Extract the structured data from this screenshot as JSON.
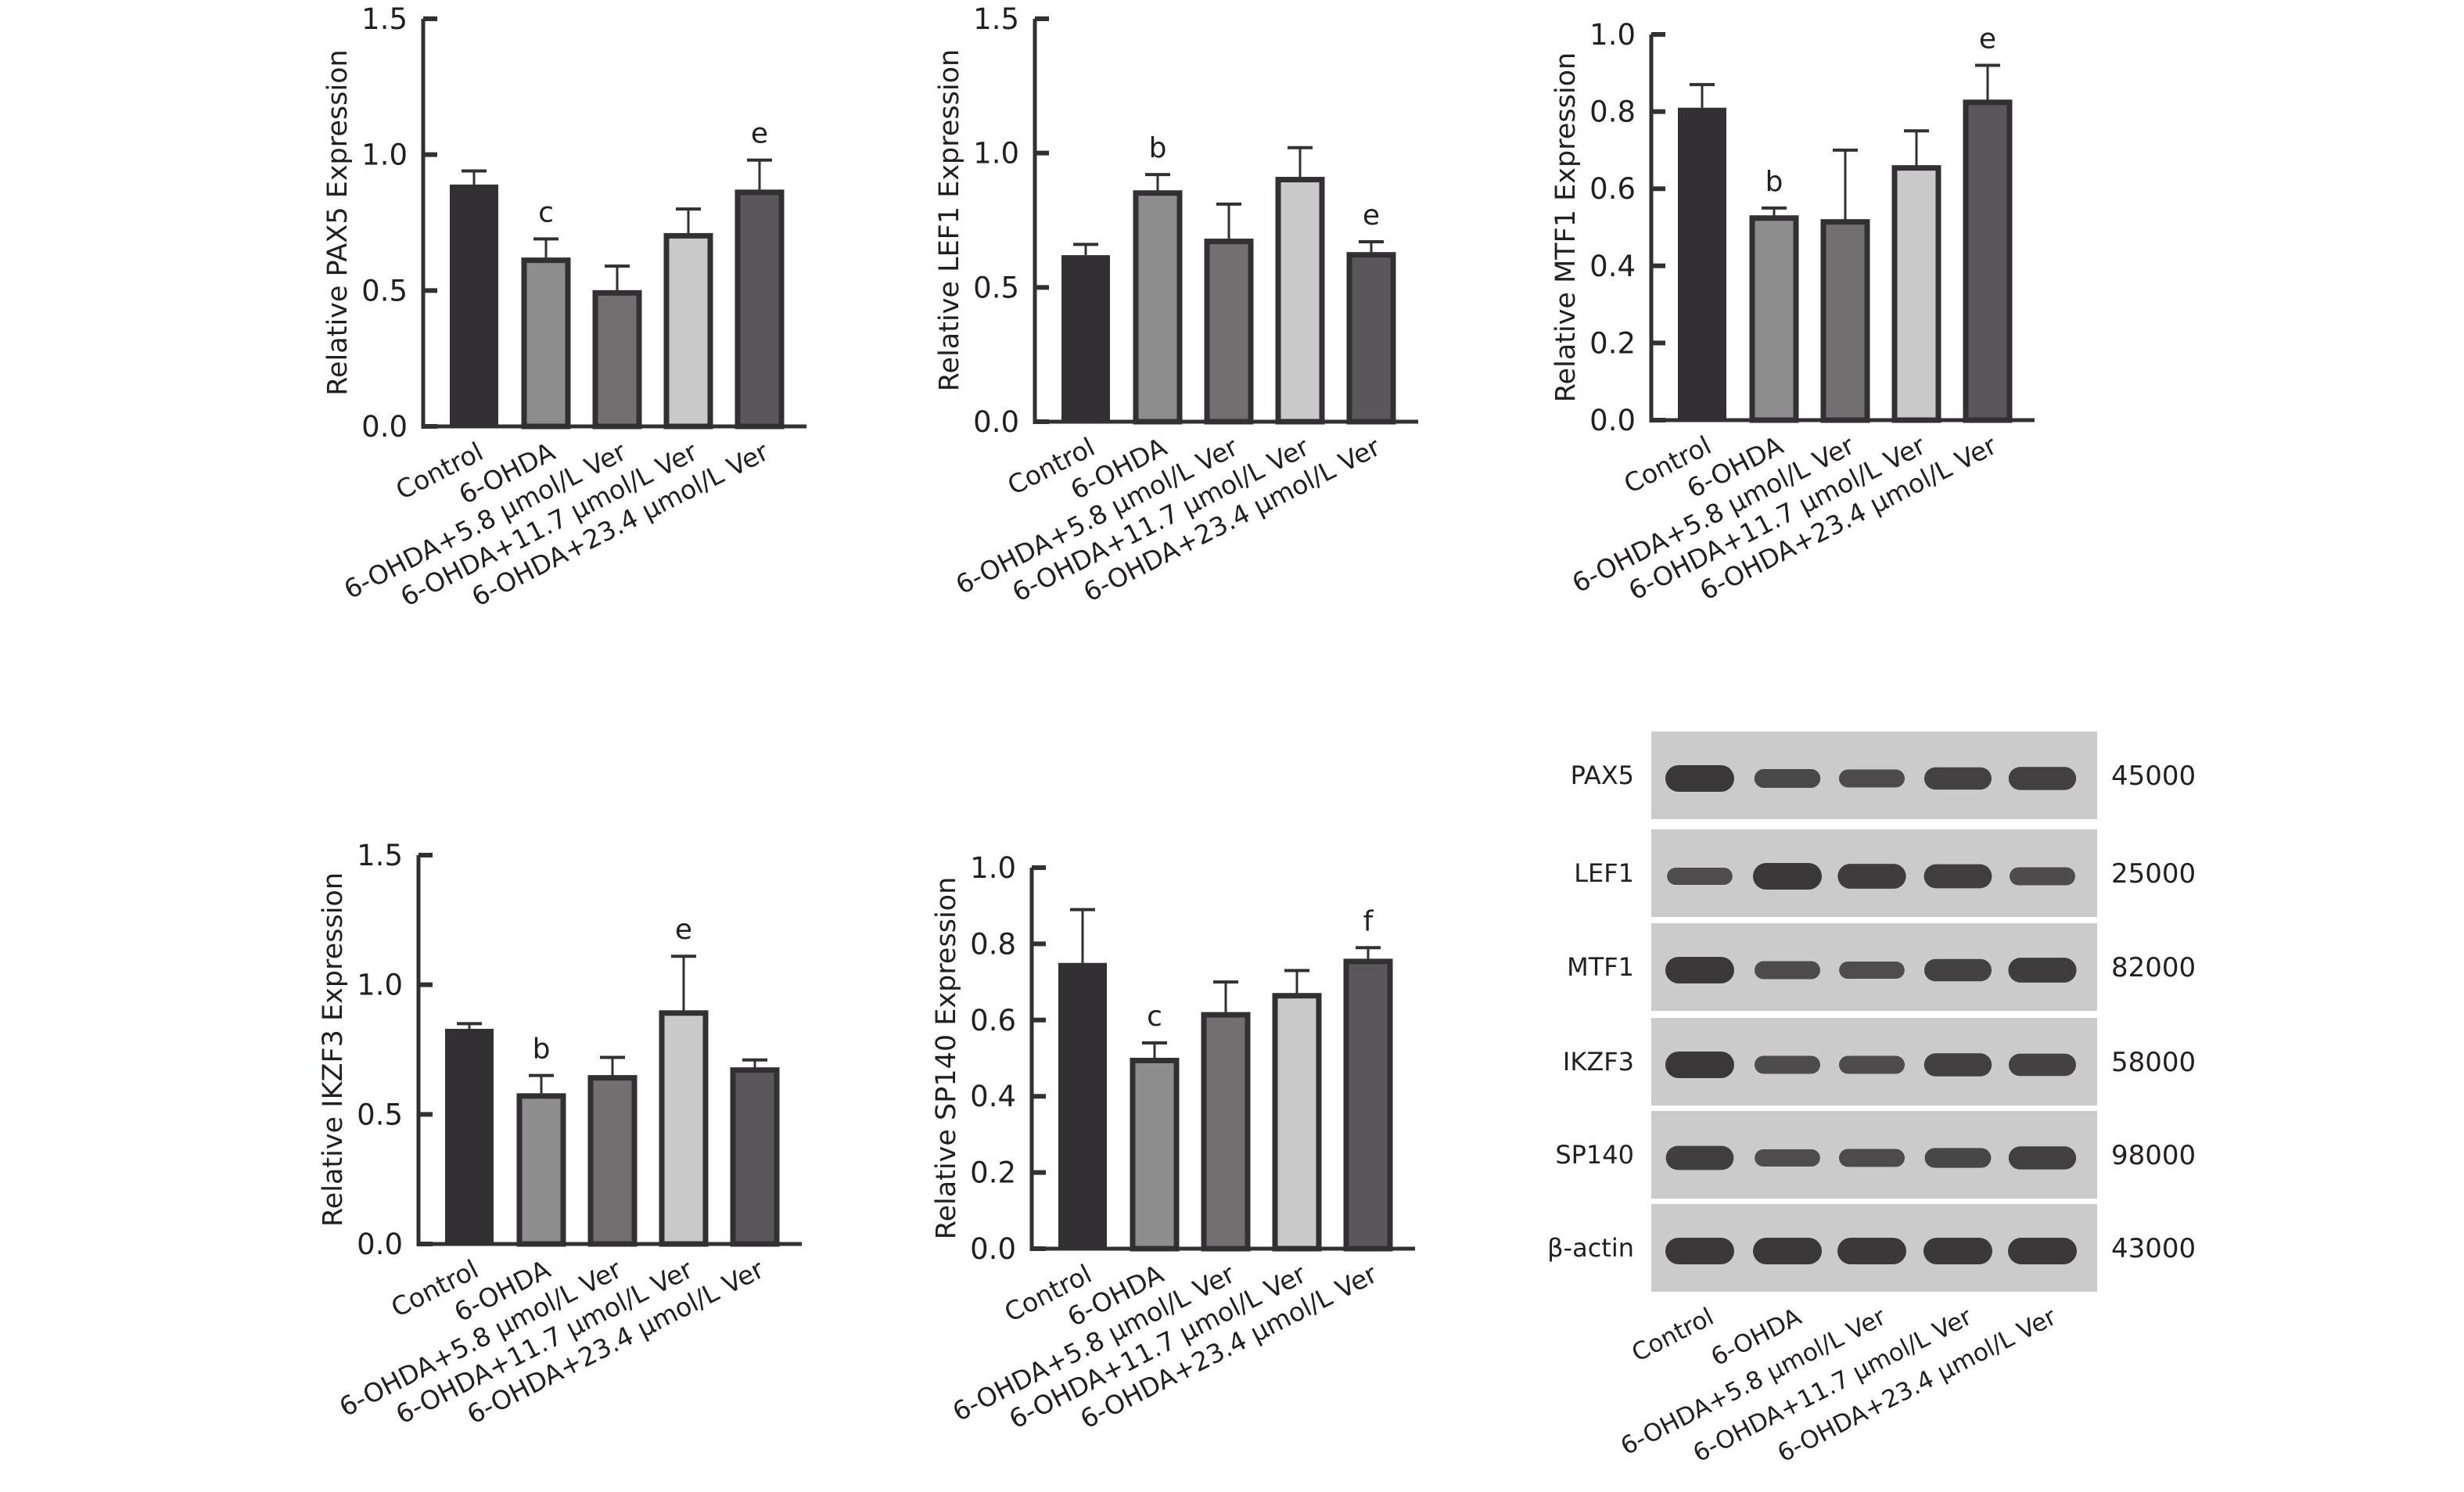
{
  "groups": [
    "Control",
    "6-OHDA",
    "6-OHDA+5.8 μmol/L Ver",
    "6-OHDA+11.7 μmol/L Ver",
    "6-OHDA+23.4 μmol/L Ver"
  ],
  "colors": {
    "bars": [
      "#333033",
      "#8e8d8e",
      "#716f70",
      "#c9c9c9",
      "#595759"
    ],
    "outline": "#333033",
    "blot_bg": "#cbcbcb",
    "band": "#3a3839"
  },
  "chart_data": [
    {
      "type": "bar",
      "id": "pax5",
      "ylabel": "Relative PAX5 Expression",
      "ylim": [
        0,
        1.5
      ],
      "ticks": [
        "0.0",
        "0.5",
        "1.0",
        "1.5"
      ],
      "values": [
        0.89,
        0.62,
        0.5,
        0.71,
        0.87
      ],
      "errors": [
        0.05,
        0.07,
        0.09,
        0.09,
        0.11
      ],
      "annotations": [
        "",
        "c",
        "",
        "",
        "e"
      ]
    },
    {
      "type": "bar",
      "id": "lef1",
      "ylabel": "Relative LEF1 Expression",
      "ylim": [
        0,
        1.5
      ],
      "ticks": [
        "0.0",
        "0.5",
        "1.0",
        "1.5"
      ],
      "values": [
        0.62,
        0.86,
        0.68,
        0.91,
        0.63
      ],
      "errors": [
        0.04,
        0.06,
        0.13,
        0.11,
        0.04
      ],
      "annotations": [
        "",
        "b",
        "",
        "",
        "e"
      ]
    },
    {
      "type": "bar",
      "id": "mtf1",
      "ylabel": "Relative MTF1 Expression",
      "ylim": [
        0,
        1.0
      ],
      "ticks": [
        "0.0",
        "0.2",
        "0.4",
        "0.6",
        "0.8",
        "1.0"
      ],
      "values": [
        0.81,
        0.53,
        0.52,
        0.66,
        0.83
      ],
      "errors": [
        0.06,
        0.02,
        0.18,
        0.09,
        0.09
      ],
      "annotations": [
        "",
        "b",
        "",
        "",
        "e"
      ]
    },
    {
      "type": "bar",
      "id": "ikzf3",
      "ylabel": "Relative IKZF3 Expression",
      "ylim": [
        0,
        1.5
      ],
      "ticks": [
        "0.0",
        "0.5",
        "1.0",
        "1.5"
      ],
      "values": [
        0.83,
        0.58,
        0.65,
        0.9,
        0.68
      ],
      "errors": [
        0.02,
        0.07,
        0.07,
        0.21,
        0.03
      ],
      "annotations": [
        "",
        "b",
        "",
        "e",
        ""
      ]
    },
    {
      "type": "bar",
      "id": "sp140",
      "ylabel": "Relative SP140 Expression",
      "ylim": [
        0,
        1.0
      ],
      "ticks": [
        "0.0",
        "0.2",
        "0.4",
        "0.6",
        "0.8",
        "1.0"
      ],
      "values": [
        0.75,
        0.5,
        0.62,
        0.67,
        0.76
      ],
      "errors": [
        0.14,
        0.04,
        0.08,
        0.06,
        0.03
      ],
      "annotations": [
        "",
        "c",
        "",
        "",
        "f"
      ]
    }
  ],
  "blot": {
    "rows": [
      {
        "label": "PAX5",
        "mw": "45000",
        "intensity": [
          1.0,
          0.55,
          0.5,
          0.75,
          0.8
        ]
      },
      {
        "label": "LEF1",
        "mw": "25000",
        "intensity": [
          0.45,
          1.0,
          0.9,
          0.85,
          0.5
        ]
      },
      {
        "label": "MTF1",
        "mw": "82000",
        "intensity": [
          1.0,
          0.5,
          0.45,
          0.75,
          0.9
        ]
      },
      {
        "label": "IKZF3",
        "mw": "58000",
        "intensity": [
          1.0,
          0.5,
          0.5,
          0.8,
          0.75
        ]
      },
      {
        "label": "SP140",
        "mw": "98000",
        "intensity": [
          0.85,
          0.45,
          0.5,
          0.6,
          0.8
        ]
      },
      {
        "label": "β-actin",
        "mw": "43000",
        "intensity": [
          1.0,
          1.0,
          1.0,
          1.0,
          1.0
        ]
      }
    ]
  }
}
